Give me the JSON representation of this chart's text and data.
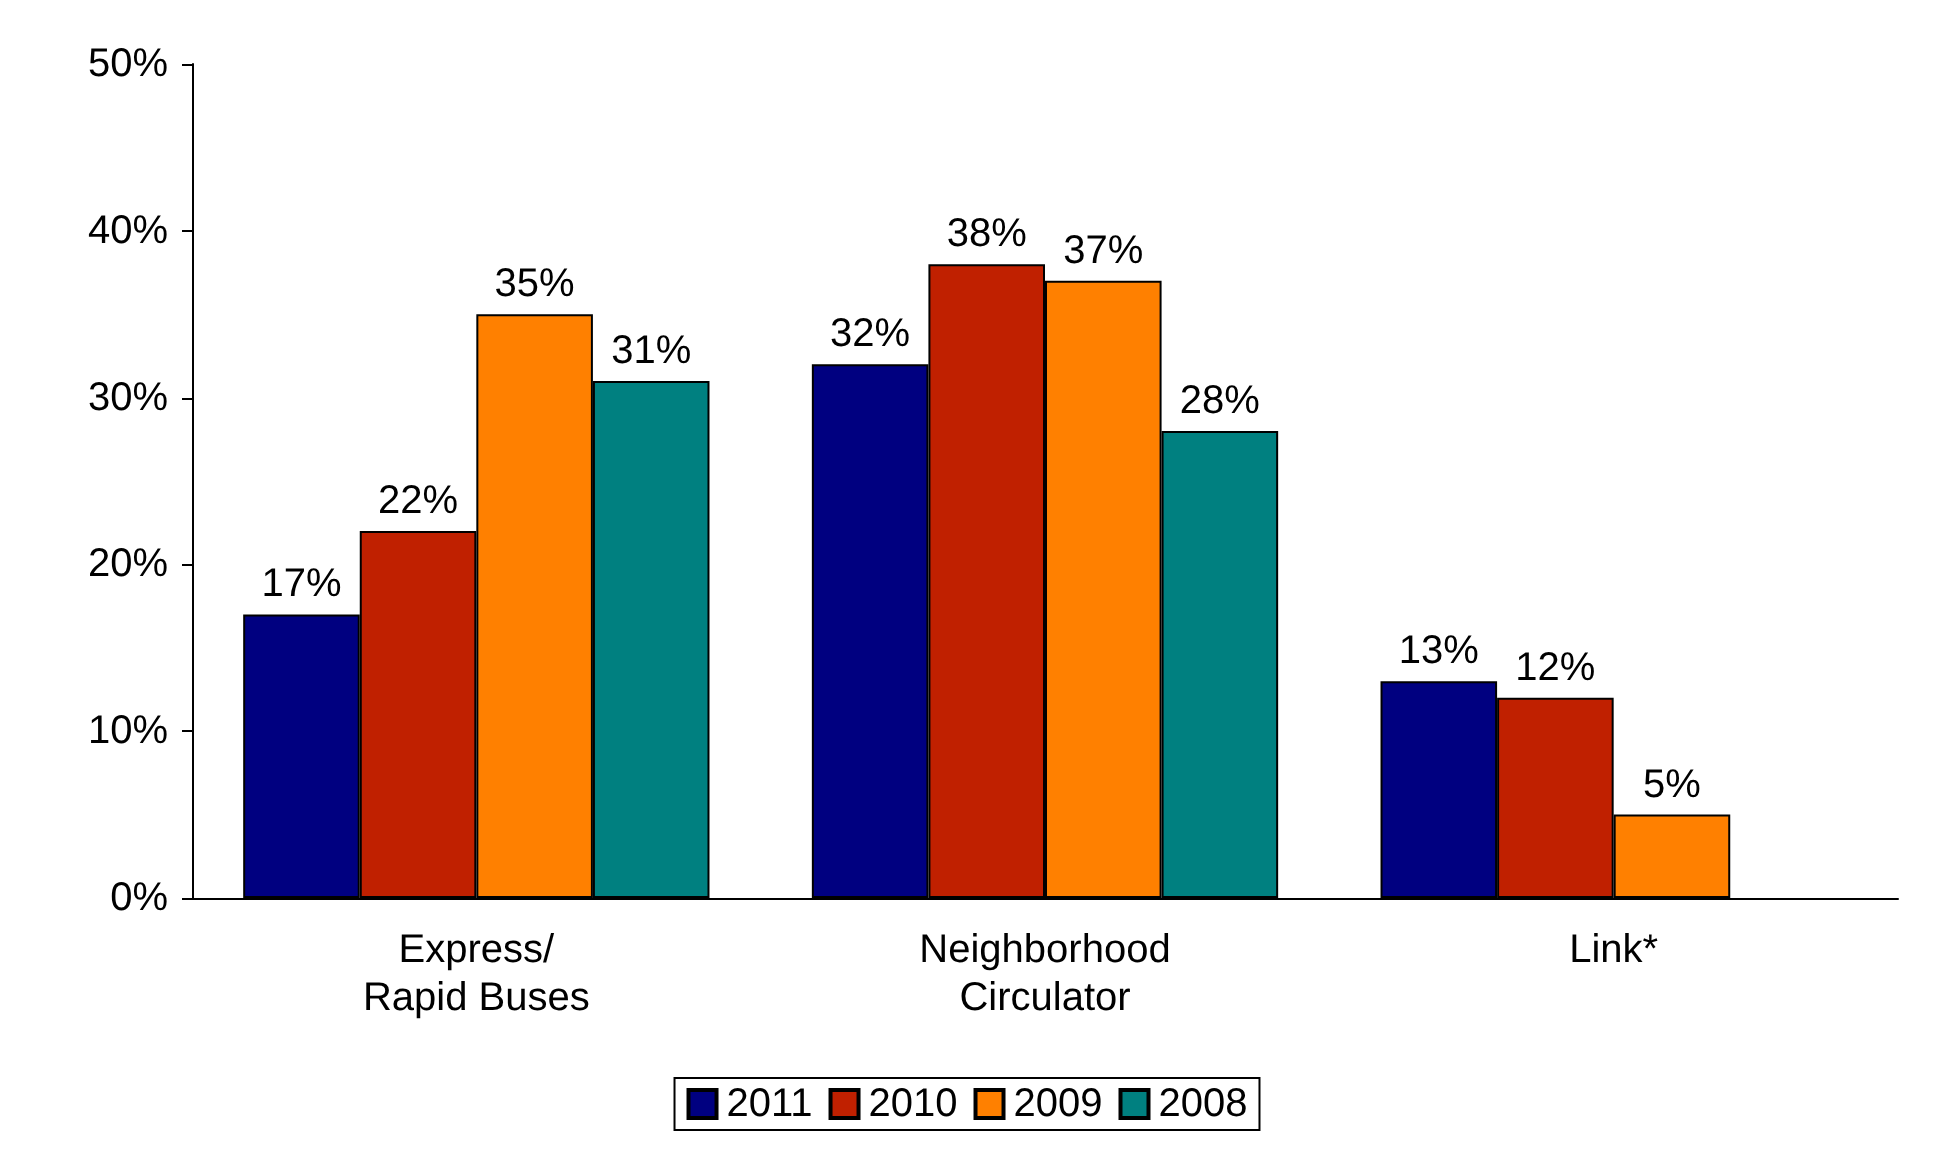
{
  "chart_data": {
    "type": "bar",
    "categories": [
      "Express/\nRapid Buses",
      "Neighborhood\nCirculator",
      "Link*"
    ],
    "series": [
      {
        "name": "2011",
        "color": "#000080",
        "values": [
          17,
          32,
          13
        ],
        "value_labels": [
          "17%",
          "32%",
          "13%"
        ]
      },
      {
        "name": "2010",
        "color": "#c02000",
        "values": [
          22,
          38,
          12
        ],
        "value_labels": [
          "22%",
          "38%",
          "12%"
        ]
      },
      {
        "name": "2009",
        "color": "#ff8000",
        "values": [
          35,
          37,
          5
        ],
        "value_labels": [
          "35%",
          "37%",
          "5%"
        ]
      },
      {
        "name": "2008",
        "color": "#008080",
        "values": [
          31,
          28,
          null
        ],
        "value_labels": [
          "31%",
          "28%",
          null
        ]
      }
    ],
    "ylim": [
      0,
      50
    ],
    "yticks": [
      {
        "value": 0,
        "label": "0%"
      },
      {
        "value": 10,
        "label": "10%"
      },
      {
        "value": 20,
        "label": "20%"
      },
      {
        "value": 30,
        "label": "30%"
      },
      {
        "value": 40,
        "label": "40%"
      },
      {
        "value": 50,
        "label": "50%"
      }
    ],
    "grid": false,
    "legend": "bottom"
  }
}
